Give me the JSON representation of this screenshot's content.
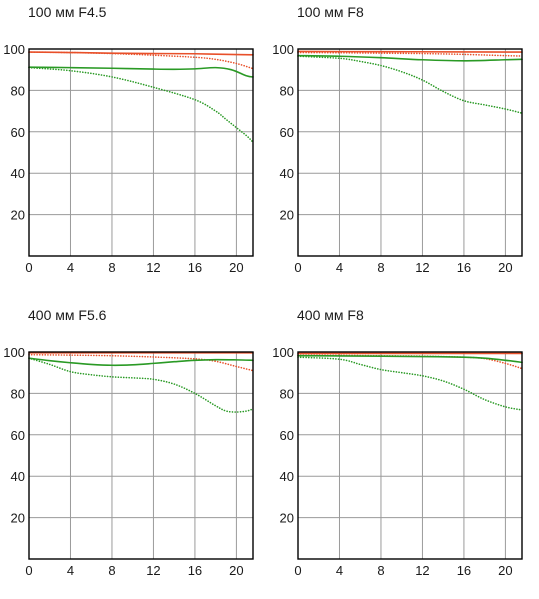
{
  "colors": {
    "red": "#e8502a",
    "green": "#2a9a25",
    "grid": "#9a9a9a",
    "frame": "#000000"
  },
  "line_styles": {
    "red": "dotted",
    "green_solid": "solid",
    "green_dotted": "dotted"
  },
  "chart_data": [
    {
      "type": "line",
      "title": "100 мм F4.5",
      "x_ticks": [
        0,
        4,
        8,
        12,
        16,
        20
      ],
      "y_ticks": [
        20,
        40,
        60,
        80,
        100
      ],
      "xlim": [
        0,
        21.6
      ],
      "ylim": [
        0,
        100
      ],
      "grid": "on",
      "series": [
        {
          "color": "red",
          "style": "solid",
          "x": [
            0,
            4,
            8,
            12,
            16,
            20,
            21.6
          ],
          "y": [
            98.5,
            98.3,
            98,
            97.8,
            97.7,
            97.3,
            97.2
          ]
        },
        {
          "color": "red",
          "style": "dotted",
          "x": [
            0,
            4,
            8,
            12,
            16,
            18,
            20,
            21.6
          ],
          "y": [
            98.5,
            98.3,
            97.8,
            97,
            96,
            95,
            93,
            90.5
          ]
        },
        {
          "color": "green",
          "style": "solid",
          "x": [
            0,
            4,
            8,
            12,
            14,
            16,
            18,
            19.5,
            21,
            21.6
          ],
          "y": [
            91.2,
            91,
            90.7,
            90.3,
            90.2,
            90.4,
            91,
            90,
            87,
            86.5
          ]
        },
        {
          "color": "green",
          "style": "dotted",
          "x": [
            0,
            4,
            8,
            12,
            16,
            18,
            19,
            20,
            21,
            21.6
          ],
          "y": [
            91,
            89.5,
            86.5,
            81.5,
            75.5,
            70,
            66,
            62,
            58,
            55
          ]
        }
      ]
    },
    {
      "type": "line",
      "title": "100 мм F8",
      "x_ticks": [
        0,
        4,
        8,
        12,
        16,
        20
      ],
      "y_ticks": [
        20,
        40,
        60,
        80,
        100
      ],
      "xlim": [
        0,
        21.6
      ],
      "ylim": [
        0,
        100
      ],
      "grid": "on",
      "series": [
        {
          "color": "red",
          "style": "solid",
          "x": [
            0,
            8,
            16,
            21.6
          ],
          "y": [
            98.8,
            98.7,
            98.6,
            98.5
          ]
        },
        {
          "color": "red",
          "style": "dotted",
          "x": [
            0,
            4,
            8,
            12,
            16,
            20,
            21.6
          ],
          "y": [
            98.3,
            98.2,
            98,
            97.8,
            97.4,
            96.8,
            96.6
          ]
        },
        {
          "color": "green",
          "style": "solid",
          "x": [
            0,
            4,
            8,
            12,
            16,
            20,
            21.6
          ],
          "y": [
            96.8,
            96.5,
            95.8,
            94.8,
            94.3,
            94.8,
            95
          ]
        },
        {
          "color": "green",
          "style": "dotted",
          "x": [
            0,
            4,
            6,
            8,
            10,
            12,
            14,
            16,
            18,
            20,
            21.6
          ],
          "y": [
            96.5,
            95.5,
            94,
            92,
            89,
            85,
            79.5,
            75,
            73,
            71,
            69
          ]
        }
      ]
    },
    {
      "type": "line",
      "title": "400 мм F5.6",
      "x_ticks": [
        0,
        4,
        8,
        12,
        16,
        20
      ],
      "y_ticks": [
        20,
        40,
        60,
        80,
        100
      ],
      "xlim": [
        0,
        21.6
      ],
      "ylim": [
        0,
        100
      ],
      "grid": "on",
      "series": [
        {
          "color": "red",
          "style": "solid",
          "x": [
            0,
            8,
            16,
            21.6
          ],
          "y": [
            99.6,
            99.6,
            99.6,
            99.6
          ]
        },
        {
          "color": "red",
          "style": "dotted",
          "x": [
            0,
            4,
            8,
            12,
            16,
            18,
            20,
            21.6
          ],
          "y": [
            98.7,
            98.5,
            98.2,
            97.6,
            96.7,
            95.5,
            93,
            91
          ]
        },
        {
          "color": "green",
          "style": "solid",
          "x": [
            0,
            2,
            4,
            6,
            8,
            10,
            12,
            14,
            16,
            18,
            20,
            21.6
          ],
          "y": [
            97,
            95.8,
            94.8,
            94,
            93.6,
            93.8,
            94.5,
            95.3,
            96,
            96.3,
            96.2,
            96
          ]
        },
        {
          "color": "green",
          "style": "dotted",
          "x": [
            0,
            2,
            4,
            6,
            8,
            10,
            12,
            14,
            16,
            18,
            19,
            20,
            21,
            21.6
          ],
          "y": [
            97,
            94,
            90.5,
            89,
            88,
            87.5,
            86.8,
            84.5,
            80,
            74,
            71.5,
            71,
            71.5,
            72.5
          ]
        }
      ]
    },
    {
      "type": "line",
      "title": "400 мм F8",
      "x_ticks": [
        0,
        4,
        8,
        12,
        16,
        20
      ],
      "y_ticks": [
        20,
        40,
        60,
        80,
        100
      ],
      "xlim": [
        0,
        21.6
      ],
      "ylim": [
        0,
        100
      ],
      "grid": "on",
      "series": [
        {
          "color": "red",
          "style": "solid",
          "x": [
            0,
            8,
            16,
            21.6
          ],
          "y": [
            99.3,
            99.3,
            99.3,
            99.3
          ]
        },
        {
          "color": "red",
          "style": "dotted",
          "x": [
            0,
            4,
            8,
            12,
            16,
            18,
            20,
            21.6
          ],
          "y": [
            98.5,
            98.4,
            98.2,
            98,
            97.5,
            96.8,
            94.5,
            92
          ]
        },
        {
          "color": "green",
          "style": "solid",
          "x": [
            0,
            4,
            8,
            12,
            16,
            18,
            20,
            21.6
          ],
          "y": [
            98.2,
            98.1,
            98,
            97.8,
            97.5,
            97,
            96,
            95
          ]
        },
        {
          "color": "green",
          "style": "dotted",
          "x": [
            0,
            4,
            6,
            8,
            10,
            12,
            14,
            16,
            18,
            20,
            21.6
          ],
          "y": [
            97.5,
            96.5,
            94,
            91.5,
            90,
            88.5,
            86,
            82,
            77,
            73.5,
            72
          ]
        }
      ]
    }
  ]
}
